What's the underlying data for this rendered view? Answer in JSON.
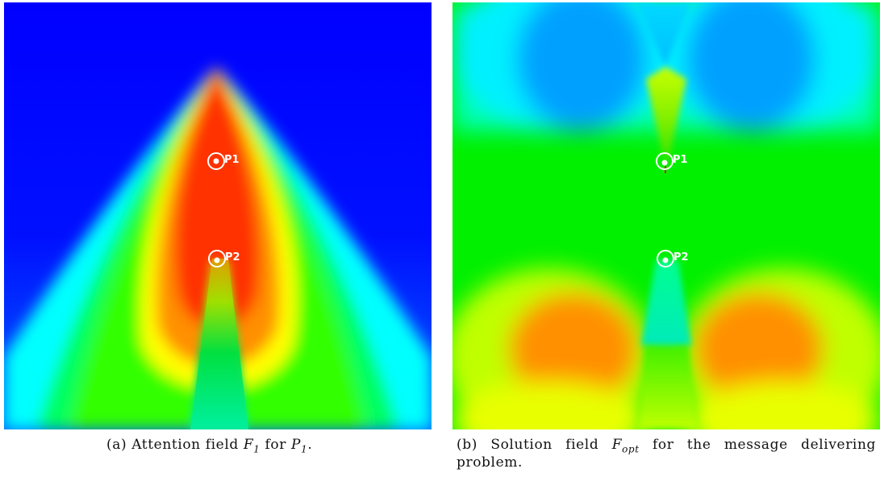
{
  "figure": {
    "panels": [
      {
        "id": "a",
        "markers": [
          {
            "label": "P1"
          },
          {
            "label": "P2"
          }
        ],
        "caption": {
          "tag": "(a)",
          "text_before": "Attention field",
          "field_symbol": "F",
          "field_subscript": "1",
          "text_middle": "for",
          "target_symbol": "P",
          "target_subscript": "1",
          "text_after": "."
        }
      },
      {
        "id": "b",
        "markers": [
          {
            "label": "P1"
          },
          {
            "label": "P2"
          }
        ],
        "caption": {
          "tag": "(b)",
          "text_before": "Solution field",
          "field_symbol": "F",
          "field_subscript": "opt",
          "text_after": "for the message delivering problem."
        }
      }
    ],
    "colors": {
      "low": "#0000ff",
      "cyan": "#00ffff",
      "green": "#00f000",
      "yellow": "#e8ff00",
      "high": "#ff2a00",
      "marker": "#ffffff"
    }
  }
}
